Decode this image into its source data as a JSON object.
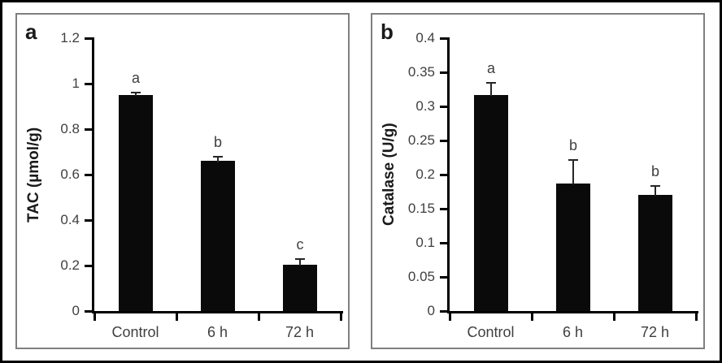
{
  "figure": {
    "panels": [
      {
        "panel_letter": "a",
        "ylabel": "TAC (µmol/g)"
      },
      {
        "panel_letter": "b",
        "ylabel": "Catalase (U/g)"
      }
    ]
  },
  "colors": {
    "bar": "#0a0a0a",
    "axis": "#000000",
    "tick_text": "#3f3f3f",
    "panel_border": "#7f7f7f",
    "outer_border": "#000000"
  },
  "chart_data": [
    {
      "type": "bar",
      "panel_letter": "a",
      "title": "",
      "xlabel": "",
      "ylabel": "TAC (µmol/g)",
      "categories": [
        "Control",
        "6 h",
        "72 h"
      ],
      "values": [
        0.95,
        0.66,
        0.205
      ],
      "errors": [
        0.01,
        0.02,
        0.025
      ],
      "sig_letters": [
        "a",
        "b",
        "c"
      ],
      "ylim": [
        0,
        1.2
      ],
      "yticks": [
        "0",
        "0.2",
        "0.4",
        "0.6",
        "0.8",
        "1",
        "1.2"
      ],
      "grid": false,
      "legend": false
    },
    {
      "type": "bar",
      "panel_letter": "b",
      "title": "",
      "xlabel": "",
      "ylabel": "Catalase (U/g)",
      "categories": [
        "Control",
        "6 h",
        "72 h"
      ],
      "values": [
        0.317,
        0.187,
        0.17
      ],
      "errors": [
        0.018,
        0.035,
        0.013
      ],
      "sig_letters": [
        "a",
        "b",
        "b"
      ],
      "ylim": [
        0,
        0.4
      ],
      "yticks": [
        "0",
        "0.05",
        "0.1",
        "0.15",
        "0.2",
        "0.25",
        "0.3",
        "0.35",
        "0.4"
      ],
      "grid": false,
      "legend": false
    }
  ]
}
